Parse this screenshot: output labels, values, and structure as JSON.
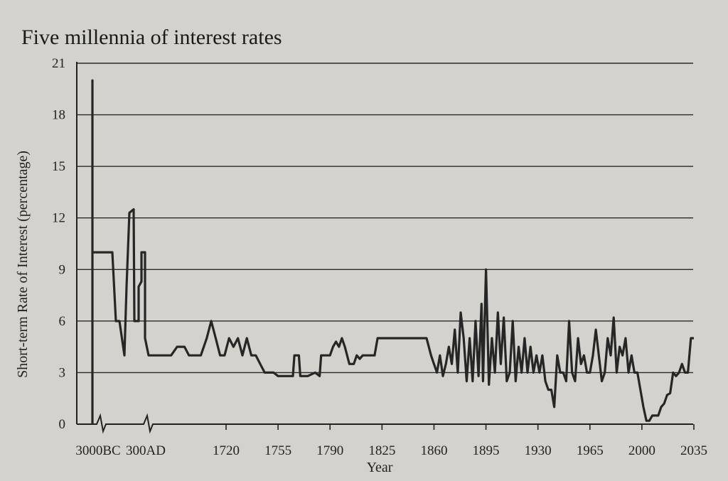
{
  "chart_data": {
    "type": "line",
    "title": "Five millennia of interest rates",
    "xlabel": "Year",
    "ylabel": "Short-term Rate of Interest (percentage)",
    "ylim": [
      0,
      21
    ],
    "yticks": [
      "0",
      "3",
      "6",
      "9",
      "12",
      "15",
      "18",
      "21"
    ],
    "xtick_labels": [
      "3000BC",
      "300AD",
      "1720",
      "1755",
      "1790",
      "1825",
      "1860",
      "1895",
      "1930",
      "1965",
      "2000",
      "2035"
    ],
    "x_scale": "broken",
    "grid": "horizontal",
    "legend": "none",
    "line_color": "#262626",
    "series": [
      {
        "note_points_are": "[period or year, rate %]",
        "ancient": [
          [
            "3000BC",
            0
          ],
          [
            "3000BC",
            20
          ],
          [
            "3000BC",
            10
          ],
          [
            "2000BC",
            10
          ],
          [
            "1700BC",
            10
          ],
          [
            "1500BC",
            6
          ],
          [
            "1400BC",
            6
          ],
          [
            "1200BC",
            4
          ],
          [
            "1000BC",
            8
          ],
          [
            "800BC",
            12.3
          ],
          [
            "600BC",
            12.5
          ],
          [
            "500BC",
            6
          ],
          [
            "300BC",
            6
          ],
          [
            "200BC",
            8
          ],
          [
            "100BC",
            8.3
          ],
          [
            "1AD",
            10
          ],
          [
            "100AD",
            10
          ],
          [
            "200AD",
            5
          ],
          [
            "300AD",
            4
          ]
        ],
        "values": [
          [
            1680,
            4
          ],
          [
            1683,
            4
          ],
          [
            1687,
            4.5
          ],
          [
            1692,
            4.5
          ],
          [
            1695,
            4
          ],
          [
            1700,
            4
          ],
          [
            1703,
            4
          ],
          [
            1707,
            5
          ],
          [
            1710,
            6
          ],
          [
            1713,
            5
          ],
          [
            1716,
            4
          ],
          [
            1719,
            4
          ],
          [
            1722,
            5
          ],
          [
            1725,
            4.5
          ],
          [
            1728,
            5
          ],
          [
            1731,
            4
          ],
          [
            1734,
            5
          ],
          [
            1737,
            4
          ],
          [
            1740,
            4
          ],
          [
            1743,
            3.5
          ],
          [
            1746,
            3
          ],
          [
            1749,
            3
          ],
          [
            1752,
            3
          ],
          [
            1755,
            2.8
          ],
          [
            1760,
            2.8
          ],
          [
            1765,
            2.8
          ],
          [
            1766,
            4
          ],
          [
            1769,
            4
          ],
          [
            1770,
            2.8
          ],
          [
            1775,
            2.8
          ],
          [
            1780,
            3
          ],
          [
            1783,
            2.8
          ],
          [
            1784,
            4
          ],
          [
            1786,
            4
          ],
          [
            1788,
            4
          ],
          [
            1790,
            4
          ],
          [
            1792,
            4.5
          ],
          [
            1794,
            4.8
          ],
          [
            1796,
            4.5
          ],
          [
            1798,
            5
          ],
          [
            1800,
            4.5
          ],
          [
            1803,
            3.5
          ],
          [
            1806,
            3.5
          ],
          [
            1808,
            4
          ],
          [
            1810,
            3.8
          ],
          [
            1812,
            4
          ],
          [
            1815,
            4
          ],
          [
            1818,
            4
          ],
          [
            1820,
            4
          ],
          [
            1822,
            5
          ],
          [
            1825,
            5
          ],
          [
            1830,
            5
          ],
          [
            1835,
            5
          ],
          [
            1840,
            5
          ],
          [
            1845,
            5
          ],
          [
            1850,
            5
          ],
          [
            1855,
            5
          ],
          [
            1858,
            4
          ],
          [
            1860,
            3.5
          ],
          [
            1862,
            3
          ],
          [
            1864,
            4
          ],
          [
            1866,
            2.8
          ],
          [
            1868,
            3.5
          ],
          [
            1870,
            4.5
          ],
          [
            1872,
            3.5
          ],
          [
            1874,
            5.5
          ],
          [
            1876,
            3
          ],
          [
            1878,
            6.5
          ],
          [
            1880,
            5
          ],
          [
            1882,
            2.5
          ],
          [
            1884,
            5
          ],
          [
            1886,
            2.5
          ],
          [
            1888,
            6
          ],
          [
            1890,
            2.8
          ],
          [
            1892,
            7
          ],
          [
            1893,
            2.5
          ],
          [
            1895,
            9
          ],
          [
            1897,
            2.3
          ],
          [
            1899,
            5
          ],
          [
            1901,
            3
          ],
          [
            1903,
            6.5
          ],
          [
            1905,
            3.5
          ],
          [
            1907,
            6.2
          ],
          [
            1909,
            2.5
          ],
          [
            1911,
            3
          ],
          [
            1913,
            6
          ],
          [
            1915,
            2.5
          ],
          [
            1917,
            4.5
          ],
          [
            1919,
            3
          ],
          [
            1921,
            5
          ],
          [
            1923,
            3
          ],
          [
            1925,
            4.5
          ],
          [
            1927,
            3
          ],
          [
            1929,
            4
          ],
          [
            1931,
            3
          ],
          [
            1933,
            4
          ],
          [
            1935,
            2.5
          ],
          [
            1937,
            2
          ],
          [
            1939,
            2
          ],
          [
            1941,
            1
          ],
          [
            1943,
            4
          ],
          [
            1945,
            3
          ],
          [
            1947,
            3
          ],
          [
            1949,
            2.5
          ],
          [
            1951,
            6
          ],
          [
            1953,
            3
          ],
          [
            1955,
            2.5
          ],
          [
            1957,
            5
          ],
          [
            1959,
            3.5
          ],
          [
            1961,
            4
          ],
          [
            1963,
            3
          ],
          [
            1965,
            3
          ],
          [
            1967,
            4
          ],
          [
            1969,
            5.5
          ],
          [
            1971,
            4
          ],
          [
            1973,
            2.5
          ],
          [
            1975,
            3
          ],
          [
            1977,
            5
          ],
          [
            1979,
            4
          ],
          [
            1981,
            6.2
          ],
          [
            1983,
            3
          ],
          [
            1985,
            4.5
          ],
          [
            1987,
            4
          ],
          [
            1989,
            5
          ],
          [
            1991,
            3
          ],
          [
            1993,
            4
          ],
          [
            1995,
            3
          ],
          [
            1997,
            3
          ],
          [
            1999,
            2
          ],
          [
            2001,
            1
          ],
          [
            2003,
            0.2
          ],
          [
            2005,
            0.2
          ],
          [
            2007,
            0.5
          ],
          [
            2009,
            0.5
          ],
          [
            2011,
            0.5
          ],
          [
            2013,
            1
          ],
          [
            2015,
            1.2
          ],
          [
            2017,
            1.7
          ],
          [
            2019,
            1.8
          ],
          [
            2021,
            3
          ],
          [
            2023,
            2.8
          ],
          [
            2025,
            3
          ],
          [
            2027,
            3.5
          ],
          [
            2029,
            3
          ],
          [
            2031,
            3
          ],
          [
            2033,
            5
          ],
          [
            2035,
            5
          ]
        ]
      }
    ]
  }
}
